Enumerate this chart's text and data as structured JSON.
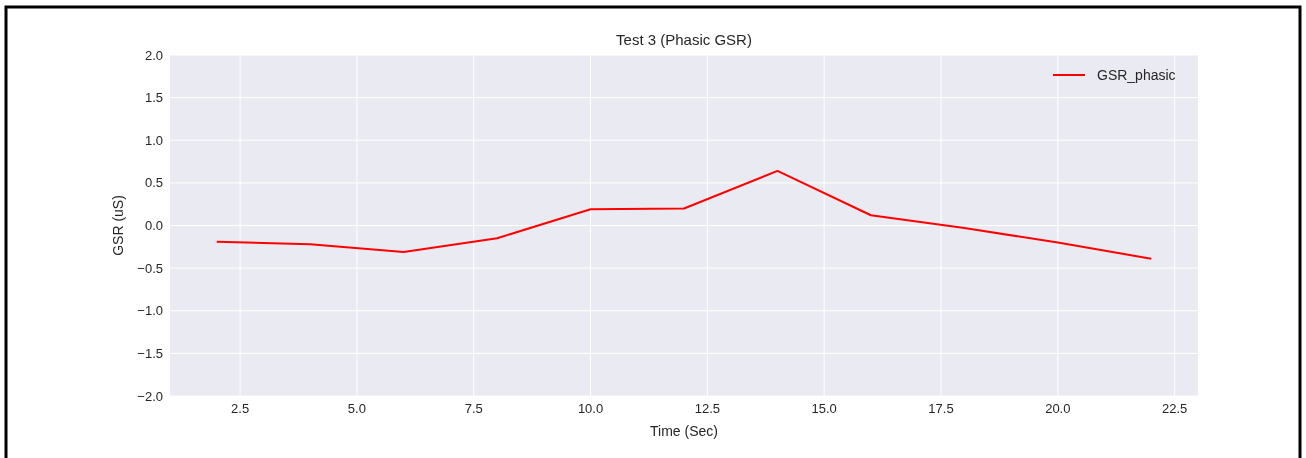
{
  "chart_data": {
    "type": "line",
    "title": "Test 3 (Phasic GSR)",
    "xlabel": "Time (Sec)",
    "ylabel": "GSR (uS)",
    "x": [
      2,
      4,
      6,
      8,
      10,
      12,
      14,
      16,
      18,
      20,
      22
    ],
    "series": [
      {
        "name": "GSR_phasic",
        "color": "#ff0000",
        "values": [
          -0.19,
          -0.22,
          -0.31,
          -0.15,
          0.19,
          0.2,
          0.64,
          0.12,
          -0.03,
          -0.2,
          -0.39
        ]
      }
    ],
    "xlim": [
      1,
      23
    ],
    "xticks": [
      {
        "value": 2.5,
        "label": "2.5"
      },
      {
        "value": 5,
        "label": "5.0"
      },
      {
        "value": 7.5,
        "label": "7.5"
      },
      {
        "value": 10,
        "label": "10.0"
      },
      {
        "value": 12.5,
        "label": "12.5"
      },
      {
        "value": 15,
        "label": "15.0"
      },
      {
        "value": 17.5,
        "label": "17.5"
      },
      {
        "value": 20,
        "label": "20.0"
      },
      {
        "value": 22.5,
        "label": "22.5"
      }
    ],
    "ylim": [
      -2,
      2
    ],
    "yticks": [
      {
        "value": -2,
        "label": "−2.0"
      },
      {
        "value": -1.5,
        "label": "−1.5"
      },
      {
        "value": -1,
        "label": "−1.0"
      },
      {
        "value": -0.5,
        "label": "−0.5"
      },
      {
        "value": 0,
        "label": "0.0"
      },
      {
        "value": 0.5,
        "label": "0.5"
      },
      {
        "value": 1,
        "label": "1.0"
      },
      {
        "value": 1.5,
        "label": "1.5"
      },
      {
        "value": 2,
        "label": "2.0"
      }
    ],
    "grid": true,
    "legend": "top right",
    "marker": "none",
    "line_style": "solid"
  }
}
